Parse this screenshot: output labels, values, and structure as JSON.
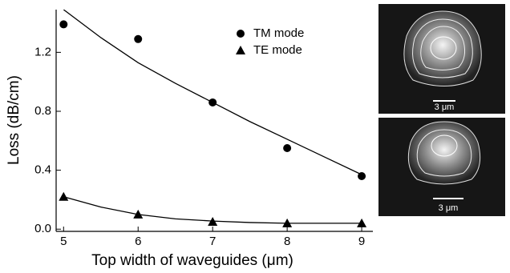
{
  "chart_data": {
    "type": "scatter",
    "xlabel": "Top width of waveguides (μm)",
    "ylabel": "Loss (dB/cm)",
    "x": [
      5,
      6,
      7,
      8,
      9
    ],
    "series": [
      {
        "name": "TM mode",
        "marker": "circle",
        "color": "#000000",
        "values": [
          1.39,
          1.29,
          0.86,
          0.55,
          0.36
        ]
      },
      {
        "name": "TE mode",
        "marker": "triangle",
        "color": "#000000",
        "values": [
          0.22,
          0.1,
          0.05,
          0.04,
          0.04
        ]
      }
    ],
    "fits": [
      {
        "color": "#000000",
        "x": [
          5,
          5.5,
          6,
          6.5,
          7,
          7.5,
          8,
          8.5,
          9
        ],
        "values": [
          1.49,
          1.3,
          1.13,
          0.99,
          0.86,
          0.73,
          0.61,
          0.49,
          0.37
        ]
      },
      {
        "color": "#000000",
        "x": [
          5,
          5.5,
          6,
          6.5,
          7,
          7.5,
          8,
          8.5,
          9
        ],
        "values": [
          0.22,
          0.15,
          0.1,
          0.07,
          0.055,
          0.045,
          0.04,
          0.04,
          0.04
        ]
      }
    ],
    "xlim": [
      4.9,
      9.15
    ],
    "ylim": [
      -0.015,
      1.49
    ],
    "xticks": [
      5,
      6,
      7,
      8,
      9
    ],
    "yticks": [
      {
        "value": 0,
        "label": "0.0"
      },
      0.4,
      0.8,
      1.2
    ],
    "legend": "upper-center",
    "insets": [
      {
        "scale_label": "3 μm"
      },
      {
        "scale_label": "3 μm"
      }
    ]
  }
}
